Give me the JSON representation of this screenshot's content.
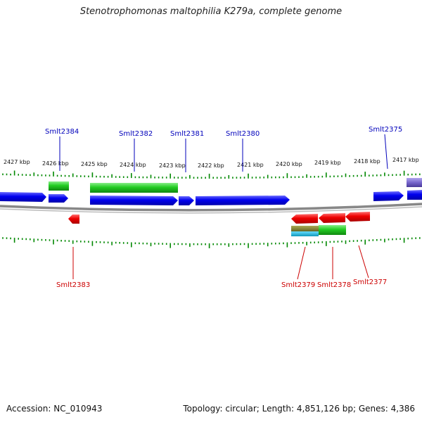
{
  "title": "Stenotrophomonas maltophilia K279a, complete genome",
  "accession": "Accession: NC_010943",
  "summary": "Topology: circular; Length: 4,851,126 bp; Genes: 4,386",
  "colors": {
    "forward_cds": "#0000ee",
    "reverse_cds": "#ee0000",
    "feature_green": "#22cc22",
    "feature_purple": "#7766cc",
    "feature_olive": "#888833",
    "feature_cyan": "#22bbdd",
    "tick_green": "#008800",
    "backbone": "#888888",
    "label_top": "#0000bb",
    "label_bottom": "#cc0000"
  },
  "kbp_labels": [
    "2427 kbp",
    "2426 kbp",
    "2425 kbp",
    "2424 kbp",
    "2423 kbp",
    "2422 kbp",
    "2421 kbp",
    "2420 kbp",
    "2419 kbp",
    "2418 kbp",
    "2417 kbp"
  ],
  "top_genes": [
    "Smlt2384",
    "Smlt2382",
    "Smlt2381",
    "Smlt2380",
    "Smlt2375"
  ],
  "bottom_genes": [
    "Smlt2383",
    "Smlt2379",
    "Smlt2378",
    "Smlt2377"
  ]
}
